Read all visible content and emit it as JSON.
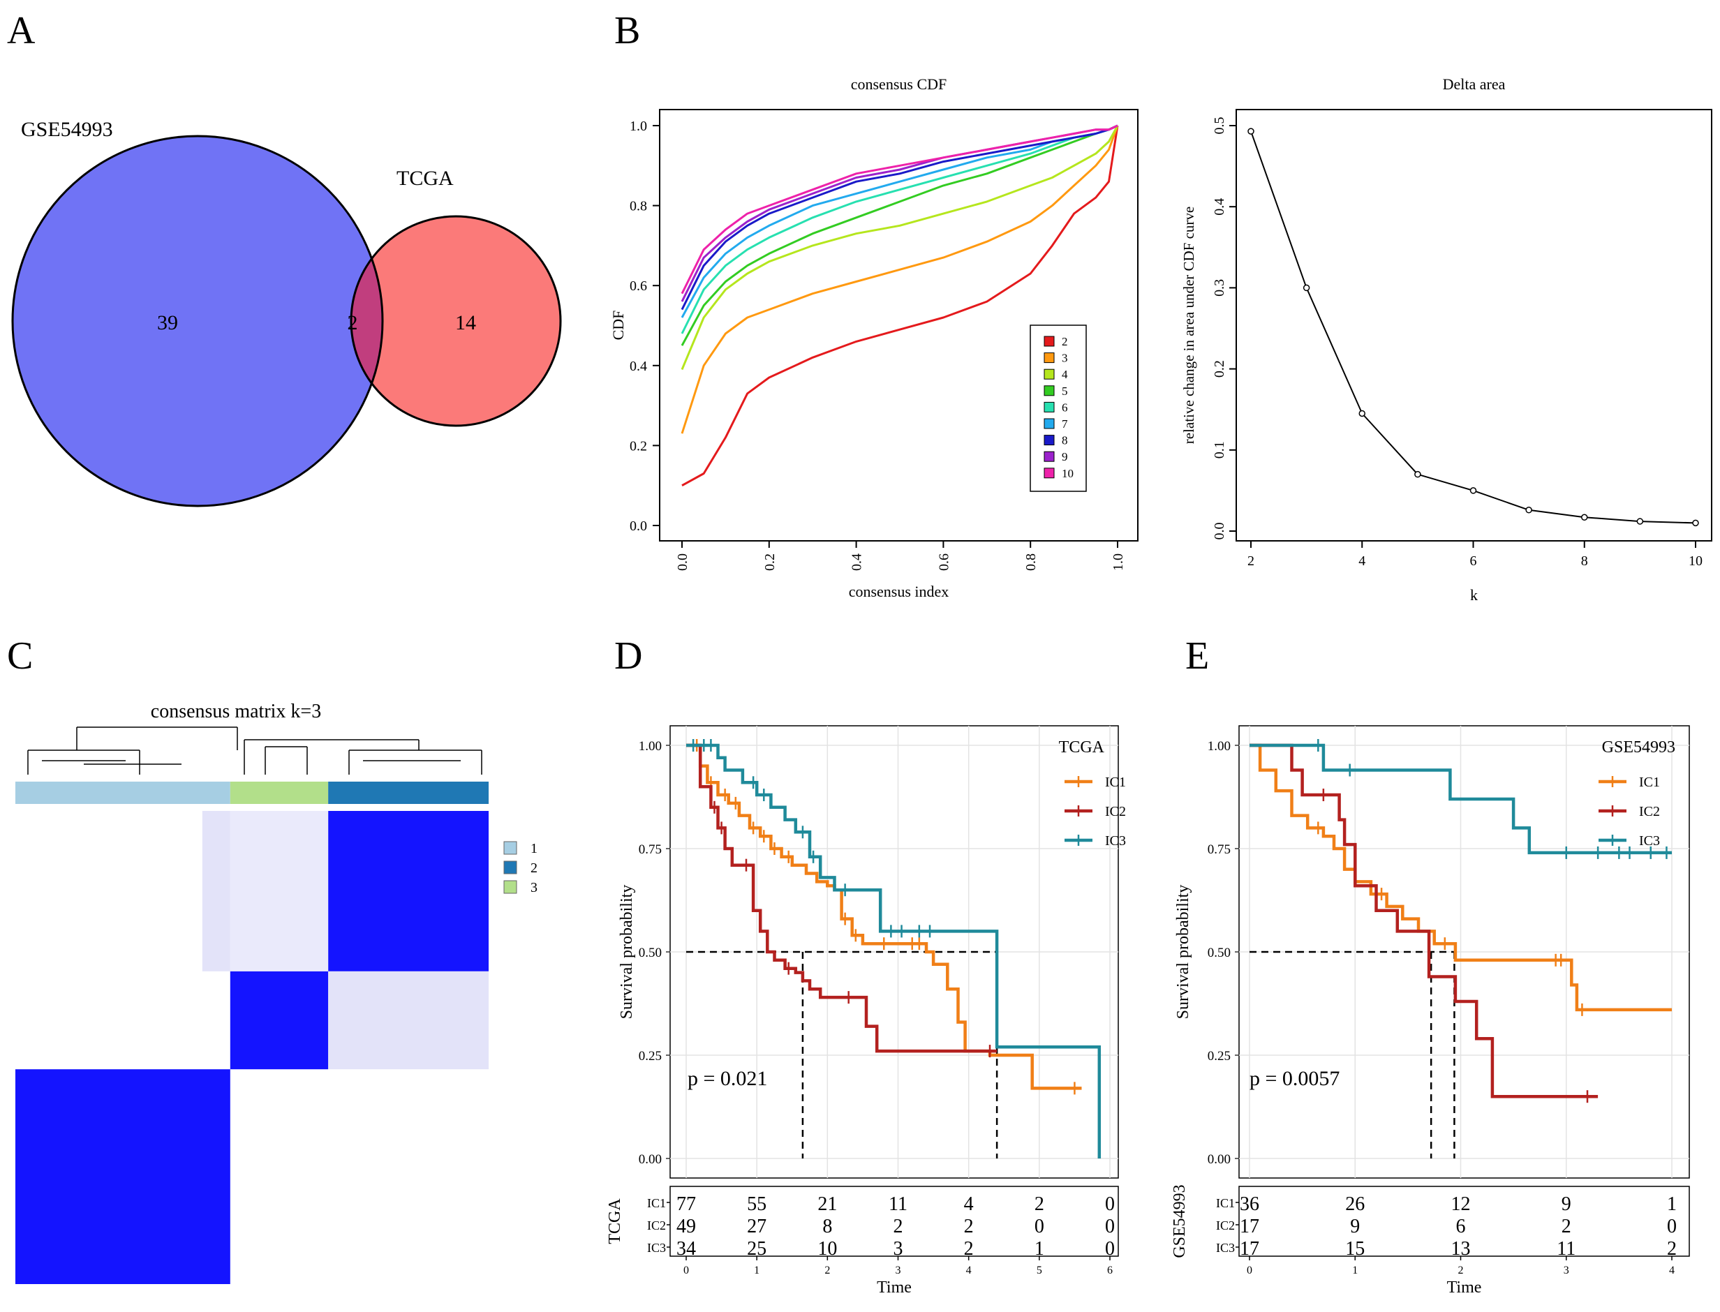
{
  "panels": {
    "A": {
      "letter": "A"
    },
    "B": {
      "letter": "B"
    },
    "C": {
      "letter": "C"
    },
    "D": {
      "letter": "D"
    },
    "E": {
      "letter": "E"
    }
  },
  "chart_data": [
    {
      "id": "venn",
      "type": "venn",
      "sets": [
        {
          "name": "GSE54993",
          "only": 39,
          "color": "#7073F5"
        },
        {
          "name": "TCGA",
          "only": 14,
          "color": "#FB7A79"
        }
      ],
      "intersection": 2,
      "intersection_color": "#C13E7E"
    },
    {
      "id": "consensus-cdf",
      "type": "line",
      "title": "consensus CDF",
      "xlabel": "consensus index",
      "ylabel": "CDF",
      "xlim": [
        0,
        1
      ],
      "ylim": [
        0,
        1
      ],
      "xticks": [
        "0.0",
        "0.2",
        "0.4",
        "0.6",
        "0.8",
        "1.0"
      ],
      "yticks": [
        "0.0",
        "0.2",
        "0.4",
        "0.6",
        "0.8",
        "1.0"
      ],
      "x": [
        0.0,
        0.05,
        0.1,
        0.15,
        0.2,
        0.3,
        0.4,
        0.5,
        0.6,
        0.7,
        0.8,
        0.85,
        0.9,
        0.95,
        0.98,
        1.0
      ],
      "series": [
        {
          "name": "2",
          "color": "#E41A1C",
          "values": [
            0.1,
            0.13,
            0.22,
            0.33,
            0.37,
            0.42,
            0.46,
            0.49,
            0.52,
            0.56,
            0.63,
            0.7,
            0.78,
            0.82,
            0.86,
            1.0
          ]
        },
        {
          "name": "3",
          "color": "#FF9910",
          "values": [
            0.23,
            0.4,
            0.48,
            0.52,
            0.54,
            0.58,
            0.61,
            0.64,
            0.67,
            0.71,
            0.76,
            0.8,
            0.85,
            0.9,
            0.94,
            1.0
          ]
        },
        {
          "name": "4",
          "color": "#B5E61D",
          "values": [
            0.39,
            0.52,
            0.59,
            0.63,
            0.66,
            0.7,
            0.73,
            0.75,
            0.78,
            0.81,
            0.85,
            0.87,
            0.9,
            0.93,
            0.96,
            1.0
          ]
        },
        {
          "name": "5",
          "color": "#33CC22",
          "values": [
            0.45,
            0.55,
            0.61,
            0.65,
            0.68,
            0.73,
            0.77,
            0.81,
            0.85,
            0.88,
            0.92,
            0.94,
            0.96,
            0.98,
            0.99,
            1.0
          ]
        },
        {
          "name": "6",
          "color": "#27E0B0",
          "values": [
            0.48,
            0.59,
            0.65,
            0.69,
            0.72,
            0.77,
            0.81,
            0.84,
            0.87,
            0.9,
            0.93,
            0.95,
            0.97,
            0.98,
            0.99,
            1.0
          ]
        },
        {
          "name": "7",
          "color": "#22AAEE",
          "values": [
            0.52,
            0.62,
            0.68,
            0.72,
            0.75,
            0.8,
            0.83,
            0.86,
            0.89,
            0.92,
            0.94,
            0.96,
            0.97,
            0.98,
            0.99,
            1.0
          ]
        },
        {
          "name": "8",
          "color": "#1A1AC8",
          "values": [
            0.54,
            0.65,
            0.71,
            0.75,
            0.78,
            0.82,
            0.86,
            0.88,
            0.91,
            0.93,
            0.95,
            0.96,
            0.97,
            0.98,
            0.99,
            1.0
          ]
        },
        {
          "name": "9",
          "color": "#9B22CC",
          "values": [
            0.56,
            0.67,
            0.72,
            0.76,
            0.79,
            0.83,
            0.87,
            0.89,
            0.92,
            0.94,
            0.96,
            0.97,
            0.98,
            0.99,
            0.99,
            1.0
          ]
        },
        {
          "name": "10",
          "color": "#EE22AA",
          "values": [
            0.58,
            0.69,
            0.74,
            0.78,
            0.8,
            0.84,
            0.88,
            0.9,
            0.92,
            0.94,
            0.96,
            0.97,
            0.98,
            0.99,
            0.99,
            1.0
          ]
        }
      ],
      "legend": "bottom-right"
    },
    {
      "id": "delta-area",
      "type": "line",
      "title": "Delta area",
      "xlabel": "k",
      "ylabel": "relative change in area under CDF curve",
      "xlim": [
        2,
        10
      ],
      "ylim": [
        0,
        0.5
      ],
      "xticks": [
        "2",
        "4",
        "6",
        "8",
        "10"
      ],
      "yticks": [
        "0.0",
        "0.1",
        "0.2",
        "0.3",
        "0.4",
        "0.5"
      ],
      "x": [
        2,
        3,
        4,
        5,
        6,
        7,
        8,
        9,
        10
      ],
      "values": [
        0.493,
        0.3,
        0.145,
        0.07,
        0.05,
        0.026,
        0.017,
        0.012,
        0.01
      ]
    },
    {
      "id": "consensus-matrix",
      "type": "heatmap",
      "title": "consensus matrix k=3",
      "legend": [
        {
          "name": "1",
          "color": "#A6CEE3"
        },
        {
          "name": "2",
          "color": "#1F78B4"
        },
        {
          "name": "3",
          "color": "#B2DF8A"
        }
      ],
      "cluster_order": [
        "1",
        "3",
        "2"
      ],
      "cluster_sizes": [
        0.454,
        0.207,
        0.339
      ],
      "row_order": [
        "2",
        "3",
        "1"
      ],
      "high_color": "#0000FF"
    },
    {
      "id": "km-tcga",
      "type": "line",
      "subtype": "kaplan-meier",
      "legend_title": "TCGA",
      "xlabel": "Time",
      "ylabel": "Survival probability",
      "xlim": [
        0,
        6
      ],
      "ylim": [
        0,
        1
      ],
      "xticks": [
        "0",
        "1",
        "2",
        "3",
        "4",
        "5",
        "6"
      ],
      "yticks": [
        "0.00",
        "0.25",
        "0.50",
        "0.75",
        "1.00"
      ],
      "pvalue": "p = 0.021",
      "median_lines_x": [
        1.65,
        4.4
      ],
      "series": [
        {
          "name": "IC1",
          "color": "#F07F17",
          "times": [
            0,
            0.2,
            0.3,
            0.45,
            0.6,
            0.75,
            0.9,
            1.05,
            1.2,
            1.35,
            1.5,
            1.7,
            1.85,
            2.0,
            2.1,
            2.2,
            2.35,
            2.5,
            3.4,
            3.5,
            3.7,
            3.85,
            3.95,
            4.3,
            4.9,
            5.6
          ],
          "values": [
            1,
            0.95,
            0.91,
            0.88,
            0.86,
            0.83,
            0.8,
            0.78,
            0.75,
            0.73,
            0.71,
            0.69,
            0.67,
            0.66,
            0.65,
            0.58,
            0.54,
            0.52,
            0.5,
            0.47,
            0.41,
            0.33,
            0.26,
            0.25,
            0.17,
            0.17
          ],
          "censors": [
            0.15,
            0.35,
            0.55,
            0.7,
            0.95,
            1.1,
            1.25,
            1.45,
            2.25,
            2.4,
            2.8,
            3.2,
            3.3,
            5.5
          ]
        },
        {
          "name": "IC2",
          "color": "#B3211F",
          "times": [
            0,
            0.2,
            0.35,
            0.45,
            0.55,
            0.65,
            0.8,
            0.95,
            1.05,
            1.15,
            1.25,
            1.4,
            1.55,
            1.65,
            1.75,
            1.9,
            2.35,
            2.55,
            2.7,
            4.4
          ],
          "values": [
            1,
            0.9,
            0.85,
            0.8,
            0.75,
            0.71,
            0.71,
            0.6,
            0.55,
            0.5,
            0.48,
            0.46,
            0.45,
            0.43,
            0.41,
            0.39,
            0.39,
            0.32,
            0.26,
            0.26
          ],
          "censors": [
            0.4,
            0.5,
            0.85,
            1.45,
            2.3,
            4.3
          ]
        },
        {
          "name": "IC3",
          "color": "#1F8A9A",
          "times": [
            0,
            0.45,
            0.55,
            0.8,
            1.0,
            1.2,
            1.4,
            1.55,
            1.75,
            1.9,
            2.1,
            2.6,
            2.75,
            4.4,
            5.8,
            5.85
          ],
          "values": [
            1,
            0.97,
            0.94,
            0.91,
            0.88,
            0.85,
            0.82,
            0.79,
            0.73,
            0.68,
            0.65,
            0.65,
            0.55,
            0.27,
            0.27,
            0.0
          ],
          "censors": [
            0.1,
            0.25,
            0.35,
            0.95,
            1.1,
            1.65,
            1.8,
            2.25,
            2.9,
            3.05,
            3.3,
            3.45
          ]
        }
      ],
      "risk_table": {
        "title": "TCGA",
        "times": [
          "0",
          "1",
          "2",
          "3",
          "4",
          "5",
          "6"
        ],
        "rows": [
          {
            "label": "IC1",
            "counts": [
              "77",
              "55",
              "21",
              "11",
              "4",
              "2",
              "0"
            ]
          },
          {
            "label": "IC2",
            "counts": [
              "49",
              "27",
              "8",
              "2",
              "2",
              "0",
              "0"
            ]
          },
          {
            "label": "IC3",
            "counts": [
              "34",
              "25",
              "10",
              "3",
              "2",
              "1",
              "0"
            ]
          }
        ]
      }
    },
    {
      "id": "km-gse54993",
      "type": "line",
      "subtype": "kaplan-meier",
      "legend_title": "GSE54993",
      "xlabel": "Time",
      "ylabel": "Survival probability",
      "xlim": [
        0,
        4
      ],
      "ylim": [
        0,
        1
      ],
      "xticks": [
        "0",
        "1",
        "2",
        "3",
        "4"
      ],
      "yticks": [
        "0.00",
        "0.25",
        "0.50",
        "0.75",
        "1.00"
      ],
      "pvalue": "p = 0.0057",
      "median_lines_x": [
        1.72,
        1.94
      ],
      "series": [
        {
          "name": "IC1",
          "color": "#F07F17",
          "times": [
            0,
            0.1,
            0.25,
            0.4,
            0.55,
            0.7,
            0.8,
            0.9,
            1.0,
            1.15,
            1.3,
            1.45,
            1.6,
            1.75,
            1.95,
            3.05,
            3.1,
            4.0
          ],
          "values": [
            1,
            0.94,
            0.89,
            0.83,
            0.8,
            0.78,
            0.75,
            0.7,
            0.67,
            0.64,
            0.61,
            0.58,
            0.55,
            0.52,
            0.48,
            0.42,
            0.36,
            0.36
          ],
          "censors": [
            0.65,
            1.25,
            1.85,
            2.9,
            2.95,
            3.15
          ]
        },
        {
          "name": "IC2",
          "color": "#B3211F",
          "times": [
            0,
            0.4,
            0.5,
            0.85,
            0.9,
            1.0,
            1.2,
            1.4,
            1.7,
            1.95,
            2.15,
            2.3,
            3.3
          ],
          "values": [
            1,
            0.94,
            0.88,
            0.82,
            0.76,
            0.66,
            0.6,
            0.55,
            0.44,
            0.38,
            0.29,
            0.15,
            0.15
          ],
          "censors": [
            0.7,
            3.2
          ]
        },
        {
          "name": "IC3",
          "color": "#1F8A9A",
          "times": [
            0,
            0.7,
            1.9,
            2.5,
            2.65,
            4.0
          ],
          "values": [
            1,
            0.94,
            0.87,
            0.8,
            0.74,
            0.74
          ],
          "censors": [
            0.65,
            0.95,
            3.0,
            3.3,
            3.5,
            3.6,
            3.8,
            3.95
          ]
        }
      ],
      "risk_table": {
        "title": "GSE54993",
        "times": [
          "0",
          "1",
          "2",
          "3",
          "4"
        ],
        "rows": [
          {
            "label": "IC1",
            "counts": [
              "36",
              "26",
              "12",
              "9",
              "1"
            ]
          },
          {
            "label": "IC2",
            "counts": [
              "17",
              "9",
              "6",
              "2",
              "0"
            ]
          },
          {
            "label": "IC3",
            "counts": [
              "17",
              "15",
              "13",
              "11",
              "2"
            ]
          }
        ]
      }
    }
  ]
}
